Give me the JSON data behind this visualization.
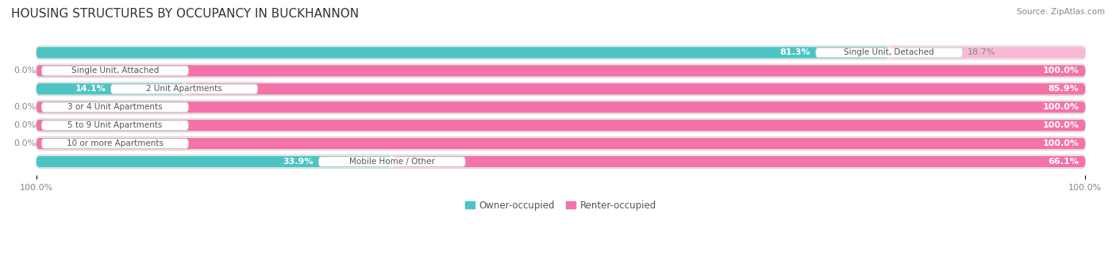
{
  "title": "HOUSING STRUCTURES BY OCCUPANCY IN BUCKHANNON",
  "source": "Source: ZipAtlas.com",
  "categories": [
    "Single Unit, Detached",
    "Single Unit, Attached",
    "2 Unit Apartments",
    "3 or 4 Unit Apartments",
    "5 to 9 Unit Apartments",
    "10 or more Apartments",
    "Mobile Home / Other"
  ],
  "owner_pct": [
    81.3,
    0.0,
    14.1,
    0.0,
    0.0,
    0.0,
    33.9
  ],
  "renter_pct": [
    18.7,
    100.0,
    85.9,
    100.0,
    100.0,
    100.0,
    66.1
  ],
  "owner_color": "#4dc4c4",
  "renter_color": "#f472a8",
  "renter_color_light": "#f9b8d4",
  "row_bg_color": "#f2f2f2",
  "row_border_color": "#d8d8d8",
  "background_color": "#ffffff",
  "title_fontsize": 11,
  "label_fontsize": 8,
  "cat_fontsize": 7.5,
  "tick_fontsize": 8,
  "legend_fontsize": 8.5,
  "source_fontsize": 7.5,
  "owner_label_color": "#ffffff",
  "renter_label_color": "#ffffff",
  "zero_label_color": "#888888",
  "cat_label_color": "#555555"
}
